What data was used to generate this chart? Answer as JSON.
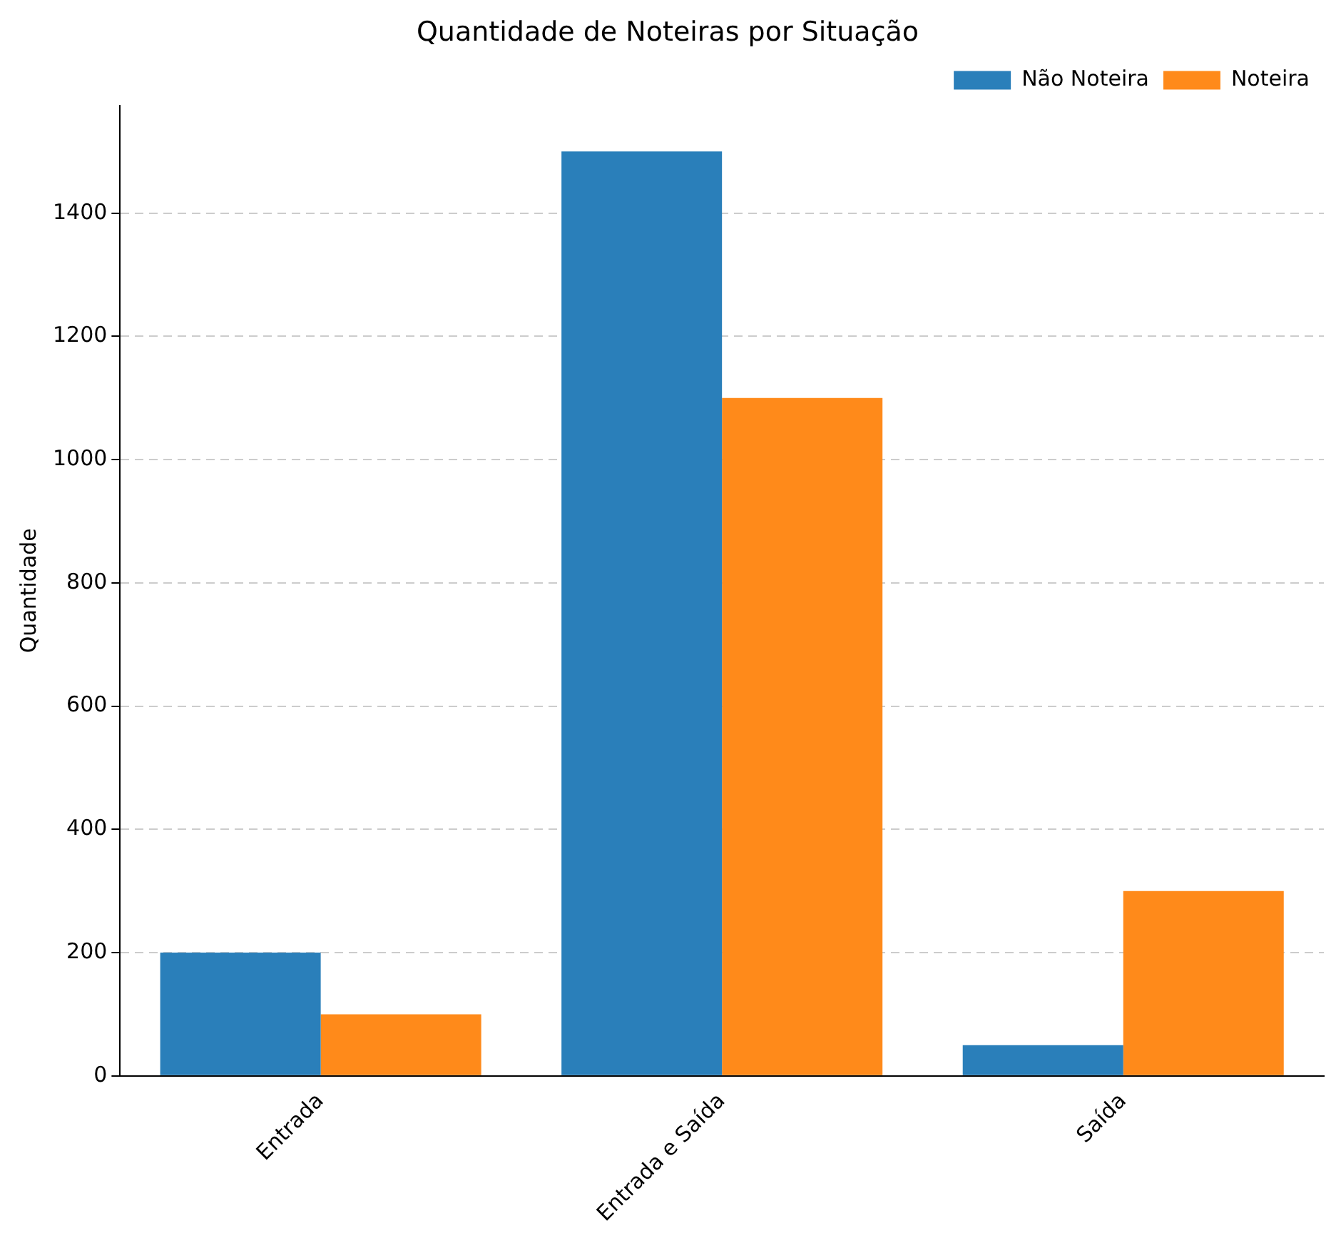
{
  "chart_data": {
    "type": "bar",
    "title": "Quantidade de Noteiras por Situação",
    "ylabel": "Quantidade",
    "categories": [
      "Entrada",
      "Entrada e Saída",
      "Saída"
    ],
    "series": [
      {
        "name": "Não Noteira",
        "color": "#2a7fba",
        "values": [
          200,
          1500,
          50
        ]
      },
      {
        "name": "Noteira",
        "color": "#ff8a1a",
        "values": [
          100,
          1100,
          300
        ]
      }
    ],
    "ylim": [
      0,
      1575
    ],
    "yticks": [
      0,
      200,
      400,
      600,
      800,
      1000,
      1200,
      1400
    ],
    "grid": "y",
    "legend": "top right"
  }
}
